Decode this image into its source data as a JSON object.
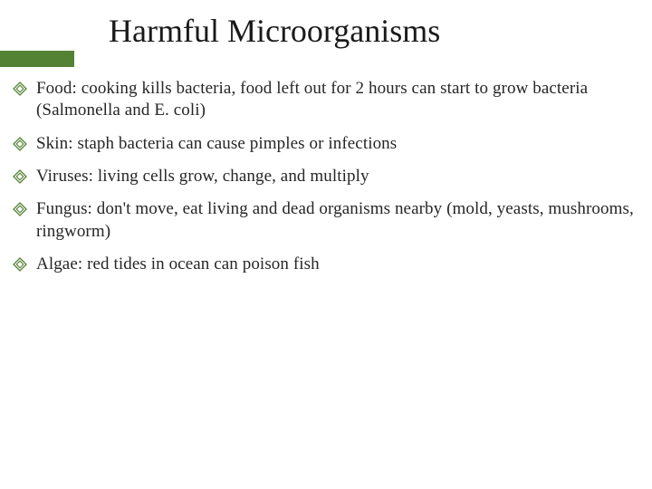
{
  "colors": {
    "accent": "#548235",
    "title": "#1a1a1a",
    "body_text": "#262626",
    "marker_stroke": "#548235",
    "background": "#ffffff"
  },
  "title": "Harmful Microorganisms",
  "title_fontsize": 36,
  "body_fontsize": 19,
  "bullets": [
    "Food: cooking kills bacteria, food left out for 2 hours can start to grow bacteria (Salmonella and E. coli)",
    "Skin: staph bacteria can cause pimples or infections",
    "Viruses: living cells grow, change, and multiply",
    "Fungus: don't move, eat living and dead organisms nearby (mold, yeasts, mushrooms, ringworm)",
    "Algae: red tides in ocean can poison fish"
  ]
}
